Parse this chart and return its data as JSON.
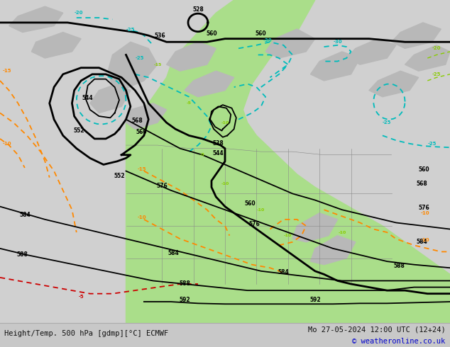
{
  "title_left": "Height/Temp. 500 hPa [gdmp][°C] ECMWF",
  "title_right": "Mo 27-05-2024 12:00 UTC (12+24)",
  "copyright": "© weatheronline.co.uk",
  "bg_color": "#c8c8c8",
  "map_bg_color": "#d4d4d4",
  "green_color": "#aade8a",
  "white_map_color": "#e8e8e8",
  "fig_width": 6.34,
  "fig_height": 4.9,
  "dpi": 100,
  "black": "#000000",
  "cyan": "#00bbbb",
  "orange": "#ff8800",
  "lime": "#88cc00",
  "red": "#cc0000",
  "title_fontsize": 7.5,
  "copyright_fontsize": 7.5,
  "copyright_color": "#0000cc"
}
